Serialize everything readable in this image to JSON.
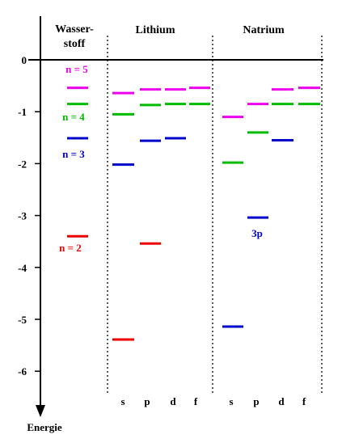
{
  "headers": {
    "hydrogen_line1": "Wasser-",
    "hydrogen_line2": "stoff",
    "lithium": "Lithium",
    "sodium": "Natrium"
  },
  "axis": {
    "label": "Energie",
    "ticks": [
      "0",
      "-1",
      "-2",
      "-3",
      "-4",
      "-5",
      "-6"
    ],
    "range": [
      -6.6,
      0
    ]
  },
  "orbital_labels": [
    "s",
    "p",
    "d",
    "f"
  ],
  "level_labels": {
    "n5": "n = 5",
    "n4": "n = 4",
    "n3": "n = 3",
    "n2": "n = 2",
    "sodium_3p": "3p"
  },
  "colors": {
    "n2": "#ee0000",
    "n3": "#0000cc",
    "n4": "#00bb00",
    "n5": "#ee00ee",
    "axis": "#000000"
  },
  "energy_levels": {
    "hydrogen": [
      {
        "n": 5,
        "energy": -0.54,
        "color": "n5"
      },
      {
        "n": 4,
        "energy": -0.85,
        "color": "n4"
      },
      {
        "n": 3,
        "energy": -1.51,
        "color": "n3"
      },
      {
        "n": 2,
        "energy": -3.4,
        "color": "n2"
      }
    ],
    "lithium": [
      {
        "orbital": "s",
        "energy": -0.64,
        "color": "n5"
      },
      {
        "orbital": "s",
        "energy": -1.05,
        "color": "n4"
      },
      {
        "orbital": "s",
        "energy": -2.02,
        "color": "n3"
      },
      {
        "orbital": "s",
        "energy": -5.39,
        "color": "n2"
      },
      {
        "orbital": "p",
        "energy": -0.57,
        "color": "n5"
      },
      {
        "orbital": "p",
        "energy": -0.87,
        "color": "n4"
      },
      {
        "orbital": "p",
        "energy": -1.56,
        "color": "n3"
      },
      {
        "orbital": "p",
        "energy": -3.54,
        "color": "n2"
      },
      {
        "orbital": "d",
        "energy": -0.57,
        "color": "n5"
      },
      {
        "orbital": "d",
        "energy": -0.85,
        "color": "n4"
      },
      {
        "orbital": "d",
        "energy": -1.51,
        "color": "n3"
      },
      {
        "orbital": "f",
        "energy": -0.54,
        "color": "n5"
      },
      {
        "orbital": "f",
        "energy": -0.85,
        "color": "n4"
      }
    ],
    "sodium": [
      {
        "orbital": "s",
        "energy": -1.1,
        "color": "n5"
      },
      {
        "orbital": "s",
        "energy": -1.98,
        "color": "n4"
      },
      {
        "orbital": "s",
        "energy": -5.14,
        "color": "n3"
      },
      {
        "orbital": "p",
        "energy": -0.85,
        "color": "n5"
      },
      {
        "orbital": "p",
        "energy": -1.4,
        "color": "n4"
      },
      {
        "orbital": "p",
        "energy": -3.04,
        "color": "n3"
      },
      {
        "orbital": "d",
        "energy": -0.57,
        "color": "n5"
      },
      {
        "orbital": "d",
        "energy": -0.85,
        "color": "n4"
      },
      {
        "orbital": "d",
        "energy": -1.55,
        "color": "n3"
      },
      {
        "orbital": "f",
        "energy": -0.54,
        "color": "n5"
      },
      {
        "orbital": "f",
        "energy": -0.85,
        "color": "n4"
      }
    ]
  }
}
